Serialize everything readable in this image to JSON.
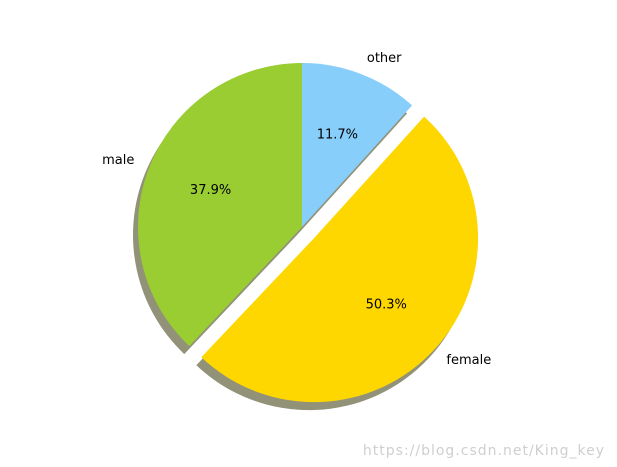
{
  "chart_data": {
    "type": "pie",
    "categories": [
      "other",
      "female",
      "male"
    ],
    "values": [
      11.7,
      50.3,
      37.9
    ],
    "percent_labels": [
      "11.7%",
      "50.3%",
      "37.9%"
    ],
    "colors": [
      "#87cefa",
      "#ffd700",
      "#9acd32"
    ],
    "explode": [
      0,
      0.1,
      0
    ],
    "shadow": true,
    "start_angle_deg": 90,
    "direction": "clockwise"
  },
  "watermark": "https://blog.csdn.net/King_key"
}
